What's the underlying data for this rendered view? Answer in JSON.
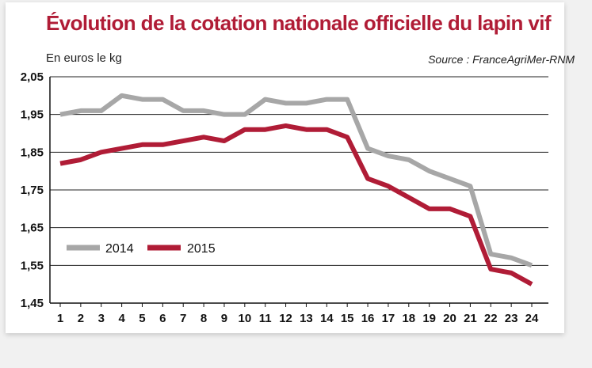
{
  "title": "Évolution de la cotation nationale officielle du lapin vif",
  "unit_label": "En euros le kg",
  "source": "Source : FranceAgriMer-RNM",
  "bottom_text": "",
  "colors": {
    "title": "#b01c36",
    "series_2014": "#a7a7a7",
    "series_2015": "#b01c36",
    "grid": "#222222"
  },
  "chart_data": {
    "type": "line",
    "x": [
      1,
      2,
      3,
      4,
      5,
      6,
      7,
      8,
      9,
      10,
      11,
      12,
      13,
      14,
      15,
      16,
      17,
      18,
      19,
      20,
      21,
      22,
      23,
      24
    ],
    "x_tick_labels": [
      "1",
      "2",
      "3",
      "4",
      "5",
      "6",
      "7",
      "8",
      "9",
      "10",
      "11",
      "12",
      "13",
      "14",
      "15",
      "16",
      "17",
      "18",
      "19",
      "20",
      "21",
      "22",
      "23",
      "24"
    ],
    "y_tick_labels": [
      "1,45",
      "1,55",
      "1,65",
      "1,75",
      "1,85",
      "1,95",
      "2,05"
    ],
    "y_ticks": [
      1.45,
      1.55,
      1.65,
      1.75,
      1.85,
      1.95,
      2.05
    ],
    "ylim": [
      1.45,
      2.05
    ],
    "ylabel": "En euros le kg",
    "grid": true,
    "legend_position": "bottom-left",
    "series": [
      {
        "name": "2014",
        "values": [
          1.95,
          1.96,
          1.96,
          2.0,
          1.99,
          1.99,
          1.96,
          1.96,
          1.95,
          1.95,
          1.99,
          1.98,
          1.98,
          1.99,
          1.99,
          1.86,
          1.84,
          1.83,
          1.8,
          1.78,
          1.76,
          1.58,
          1.57,
          1.55
        ]
      },
      {
        "name": "2015",
        "values": [
          1.82,
          1.83,
          1.85,
          1.86,
          1.87,
          1.87,
          1.88,
          1.89,
          1.88,
          1.91,
          1.91,
          1.92,
          1.91,
          1.91,
          1.89,
          1.78,
          1.76,
          1.73,
          1.7,
          1.7,
          1.68,
          1.54,
          1.53,
          1.5
        ]
      }
    ]
  }
}
